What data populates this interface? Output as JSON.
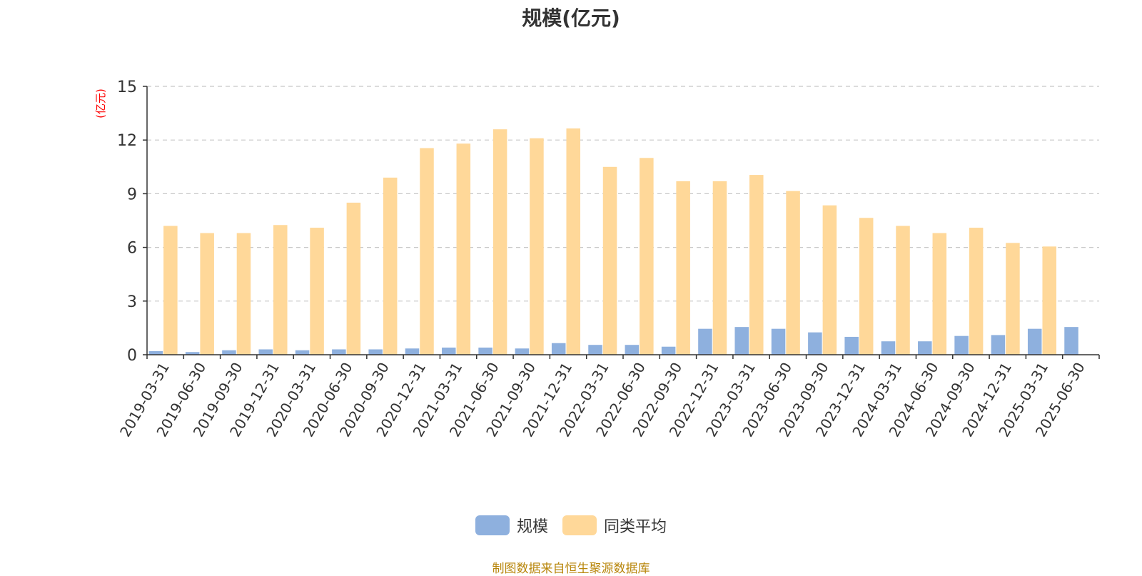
{
  "chart_data": {
    "type": "bar",
    "title": "规模(亿元)",
    "ylabel": "(亿元)",
    "ylim": [
      0,
      15
    ],
    "yticks": [
      0,
      3,
      6,
      9,
      12,
      15
    ],
    "grid": true,
    "legend_position": "bottom-center",
    "categories": [
      "2019-03-31",
      "2019-06-30",
      "2019-09-30",
      "2019-12-31",
      "2020-03-31",
      "2020-06-30",
      "2020-09-30",
      "2020-12-31",
      "2021-03-31",
      "2021-06-30",
      "2021-09-30",
      "2021-12-31",
      "2022-03-31",
      "2022-06-30",
      "2022-09-30",
      "2022-12-31",
      "2023-03-31",
      "2023-06-30",
      "2023-09-30",
      "2023-12-31",
      "2024-03-31",
      "2024-06-30",
      "2024-09-30",
      "2024-12-31",
      "2025-03-31",
      "2025-06-30"
    ],
    "series": [
      {
        "name": "规模",
        "color": "#8eb0de",
        "values": [
          0.2,
          0.15,
          0.25,
          0.3,
          0.25,
          0.3,
          0.3,
          0.35,
          0.4,
          0.4,
          0.35,
          0.65,
          0.55,
          0.55,
          0.45,
          1.45,
          1.55,
          1.45,
          1.25,
          1.0,
          0.75,
          0.75,
          1.05,
          1.1,
          1.45,
          1.55
        ]
      },
      {
        "name": "同类平均",
        "color": "#ffd899",
        "values": [
          7.2,
          6.8,
          6.8,
          7.25,
          7.1,
          8.5,
          9.9,
          11.55,
          11.8,
          12.6,
          12.1,
          12.65,
          10.5,
          11.0,
          9.7,
          9.7,
          10.05,
          9.15,
          8.35,
          7.65,
          7.2,
          6.8,
          7.1,
          6.25,
          6.05,
          null
        ]
      }
    ]
  },
  "footer": {
    "source": "制图数据来自恒生聚源数据库"
  }
}
